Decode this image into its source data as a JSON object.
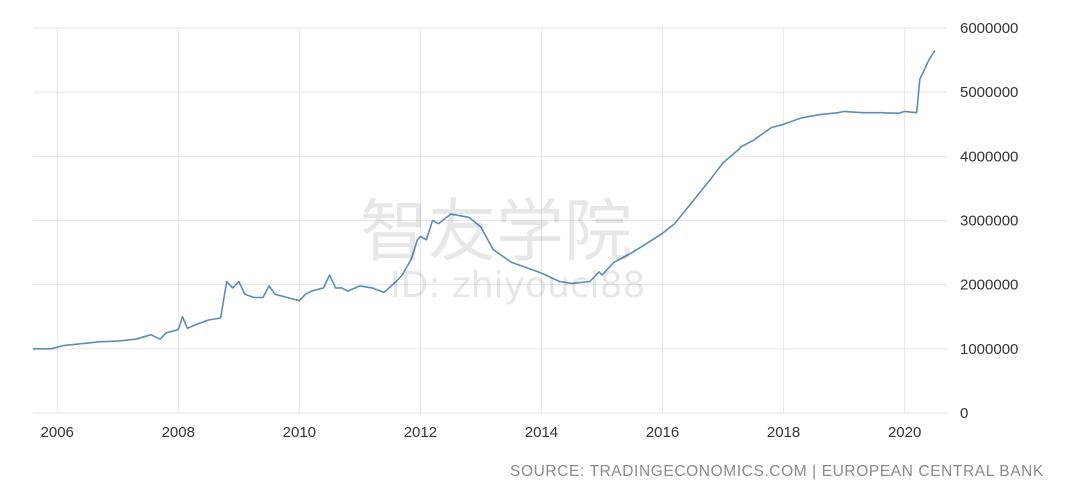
{
  "chart_data": {
    "type": "line",
    "title": "",
    "xlabel": "",
    "ylabel": "",
    "x_ticks": [
      "2006",
      "2008",
      "2010",
      "2012",
      "2014",
      "2016",
      "2018",
      "2020"
    ],
    "y_ticks": [
      "0",
      "1000000",
      "2000000",
      "3000000",
      "4000000",
      "5000000",
      "6000000"
    ],
    "xlim": [
      2005.6,
      2020.7
    ],
    "ylim": [
      0,
      6000000
    ],
    "grid": true,
    "y_axis_side": "right",
    "line_color": "#5b8db8",
    "series": [
      {
        "x": [
          2005.6,
          2005.9,
          2006.1,
          2006.4,
          2006.7,
          2007.0,
          2007.3,
          2007.55,
          2007.7,
          2007.8,
          2008.0,
          2008.07,
          2008.15,
          2008.3,
          2008.5,
          2008.7,
          2008.8,
          2008.9,
          2009.0,
          2009.1,
          2009.25,
          2009.4,
          2009.5,
          2009.6,
          2009.8,
          2010.0,
          2010.1,
          2010.2,
          2010.4,
          2010.5,
          2010.6,
          2010.7,
          2010.8,
          2011.0,
          2011.2,
          2011.4,
          2011.6,
          2011.7,
          2011.85,
          2011.95,
          2012.0,
          2012.1,
          2012.2,
          2012.3,
          2012.5,
          2012.8,
          2013.0,
          2013.2,
          2013.5,
          2013.8,
          2014.0,
          2014.3,
          2014.5,
          2014.8,
          2014.95,
          2015.0,
          2015.2,
          2015.3,
          2015.5,
          2015.7,
          2016.0,
          2016.2,
          2016.5,
          2016.8,
          2017.0,
          2017.25,
          2017.3,
          2017.5,
          2017.8,
          2018.0,
          2018.3,
          2018.6,
          2018.9,
          2019.0,
          2019.3,
          2019.6,
          2019.9,
          2020.0,
          2020.2,
          2020.25,
          2020.3,
          2020.4,
          2020.5
        ],
        "values": [
          1000000,
          1000000,
          1050000,
          1080000,
          1110000,
          1120000,
          1150000,
          1220000,
          1150000,
          1250000,
          1300000,
          1500000,
          1320000,
          1380000,
          1450000,
          1480000,
          2050000,
          1950000,
          2050000,
          1850000,
          1800000,
          1800000,
          1980000,
          1850000,
          1800000,
          1750000,
          1850000,
          1900000,
          1950000,
          2150000,
          1950000,
          1950000,
          1900000,
          1980000,
          1950000,
          1880000,
          2050000,
          2150000,
          2400000,
          2700000,
          2750000,
          2700000,
          3000000,
          2950000,
          3100000,
          3050000,
          2900000,
          2550000,
          2350000,
          2250000,
          2180000,
          2050000,
          2020000,
          2050000,
          2200000,
          2150000,
          2350000,
          2400000,
          2500000,
          2620000,
          2800000,
          2950000,
          3300000,
          3650000,
          3900000,
          4100000,
          4150000,
          4250000,
          4450000,
          4500000,
          4600000,
          4650000,
          4680000,
          4700000,
          4680000,
          4680000,
          4670000,
          4700000,
          4680000,
          5200000,
          5300000,
          5500000,
          5650000
        ]
      }
    ]
  },
  "source_text": "SOURCE: TRADINGECONOMICS.COM | EUROPEAN CENTRAL BANK",
  "watermark": {
    "logo_text": "智友学院",
    "id_text": "ID: zhiyouci88"
  }
}
